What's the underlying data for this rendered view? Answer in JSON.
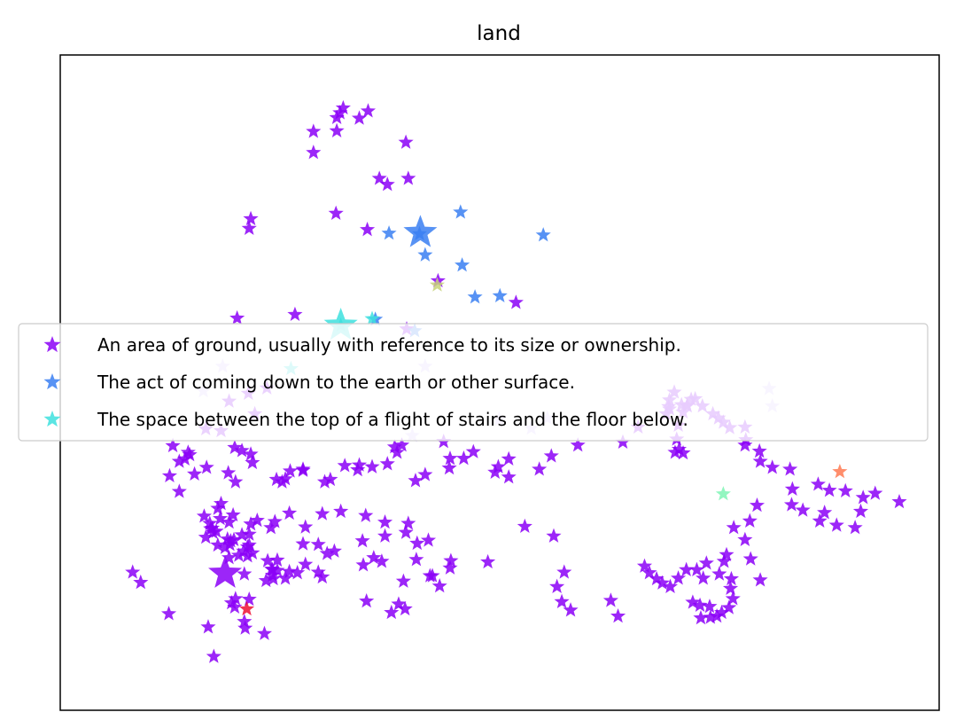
{
  "chart_data": {
    "type": "scatter",
    "title": "land",
    "xlabel": "",
    "ylabel": "",
    "xlim": [
      0,
      100
    ],
    "ylim": [
      0,
      100
    ],
    "grid": false,
    "ticks_visible": false,
    "marker": "star",
    "legend": {
      "placement": "center-left",
      "entries": [
        {
          "label": "An area of ground, usually with reference to its size or ownership.",
          "color": "#8b00f7"
        },
        {
          "label": "The act of coming down to the earth or other surface.",
          "color": "#3a7ff2"
        },
        {
          "label": "The space between the top of a flight of stairs and the floor below.",
          "color": "#3de0de"
        }
      ]
    },
    "series": [
      {
        "color": "#8b00f7",
        "points": [
          [
            30.8,
            95.6
          ],
          [
            30.4,
            94.8
          ],
          [
            33.9,
            95.1
          ],
          [
            30.0,
            94.0
          ],
          [
            32.8,
            93.9
          ],
          [
            27.1,
            91.7
          ],
          [
            30.0,
            91.8
          ],
          [
            27.1,
            88.2
          ],
          [
            38.6,
            89.9
          ],
          [
            35.3,
            83.9
          ],
          [
            36.3,
            82.9
          ],
          [
            38.9,
            83.9
          ],
          [
            19.3,
            77.2
          ],
          [
            19.1,
            75.6
          ],
          [
            29.9,
            78.1
          ],
          [
            33.8,
            75.4
          ],
          [
            42.6,
            66.9
          ],
          [
            52.3,
            63.3
          ],
          [
            17.6,
            60.7
          ],
          [
            24.8,
            61.3
          ],
          [
            38.7,
            58.9
          ],
          [
            19.0,
            48.2
          ],
          [
            21.3,
            49.1
          ],
          [
            19.8,
            44.8
          ],
          [
            16.6,
            46.9
          ],
          [
            13.7,
            42.3
          ],
          [
            16.5,
            35.0
          ],
          [
            18.2,
            38.7
          ],
          [
            17.3,
            39.2
          ],
          [
            19.3,
            38.1
          ],
          [
            19.5,
            36.7
          ],
          [
            17.4,
            33.5
          ],
          [
            15.6,
            42.0
          ],
          [
            9.6,
            39.5
          ],
          [
            11.5,
            38.4
          ],
          [
            11.1,
            37.3
          ],
          [
            11.7,
            38.0
          ],
          [
            13.8,
            35.9
          ],
          [
            9.2,
            34.5
          ],
          [
            10.4,
            36.9
          ],
          [
            10.4,
            31.9
          ],
          [
            12.3,
            34.8
          ],
          [
            17.1,
            28.0
          ],
          [
            15.2,
            29.1
          ],
          [
            14.5,
            25.8
          ],
          [
            16.8,
            23.7
          ],
          [
            18.2,
            24.7
          ],
          [
            19.1,
            23.0
          ],
          [
            18.4,
            22.0
          ],
          [
            17.8,
            21.3
          ],
          [
            19.5,
            21.7
          ],
          [
            18.9,
            21.2
          ],
          [
            16.4,
            24.0
          ],
          [
            14.6,
            25.1
          ],
          [
            16.1,
            22.6
          ],
          [
            16.6,
            20.9
          ],
          [
            16.7,
            23.1
          ],
          [
            18.9,
            22.7
          ],
          [
            19.1,
            24.8
          ],
          [
            15.0,
            25.3
          ],
          [
            13.7,
            24.3
          ],
          [
            15.2,
            23.0
          ],
          [
            17.2,
            23.9
          ],
          [
            14.2,
            26.6
          ],
          [
            14.3,
            25.7
          ],
          [
            16.6,
            26.8
          ],
          [
            15.5,
            27.4
          ],
          [
            20.1,
            27.1
          ],
          [
            19.3,
            26.5
          ],
          [
            13.5,
            27.8
          ],
          [
            15.6,
            29.9
          ],
          [
            4.6,
            18.5
          ],
          [
            5.6,
            16.8
          ],
          [
            9.1,
            11.6
          ],
          [
            14.0,
            9.4
          ],
          [
            18.6,
            9.2
          ],
          [
            14.7,
            4.5
          ],
          [
            21.0,
            8.3
          ],
          [
            18.5,
            10.3
          ],
          [
            17.4,
            14.1
          ],
          [
            19.1,
            14.0
          ],
          [
            17.3,
            12.7
          ],
          [
            22.0,
            18.0
          ],
          [
            21.2,
            17.1
          ],
          [
            22.6,
            18.8
          ],
          [
            22.1,
            17.4
          ],
          [
            16.9,
            13.4
          ],
          [
            18.5,
            18.2
          ],
          [
            21.9,
            19.0
          ],
          [
            23.6,
            17.5
          ],
          [
            21.4,
            20.4
          ],
          [
            22.6,
            20.5
          ],
          [
            22.0,
            18.9
          ],
          [
            24.1,
            18.6
          ],
          [
            27.7,
            23.1
          ],
          [
            25.1,
            18.4
          ],
          [
            28.2,
            17.7
          ],
          [
            27.7,
            18.5
          ],
          [
            26.1,
            19.8
          ],
          [
            28.8,
            21.6
          ],
          [
            29.7,
            22.0
          ],
          [
            21.8,
            25.9
          ],
          [
            25.8,
            23.2
          ],
          [
            33.3,
            19.7
          ],
          [
            34.6,
            20.9
          ],
          [
            33.2,
            23.7
          ],
          [
            35.6,
            20.3
          ],
          [
            37.7,
            13.2
          ],
          [
            33.7,
            13.7
          ],
          [
            38.5,
            12.4
          ],
          [
            36.8,
            11.8
          ],
          [
            41.9,
            17.9
          ],
          [
            38.3,
            17.0
          ],
          [
            39.9,
            20.6
          ],
          [
            40.0,
            23.3
          ],
          [
            36.0,
            24.5
          ],
          [
            38.6,
            25.1
          ],
          [
            41.4,
            23.8
          ],
          [
            44.1,
            19.2
          ],
          [
            41.6,
            17.9
          ],
          [
            42.8,
            16.2
          ],
          [
            44.2,
            20.4
          ],
          [
            48.8,
            20.2
          ],
          [
            38.9,
            26.6
          ],
          [
            36.0,
            26.8
          ],
          [
            33.6,
            27.9
          ],
          [
            30.5,
            28.6
          ],
          [
            28.2,
            28.2
          ],
          [
            26.1,
            26.0
          ],
          [
            24.1,
            28.3
          ],
          [
            22.3,
            26.9
          ],
          [
            23.2,
            33.5
          ],
          [
            22.5,
            33.9
          ],
          [
            25.8,
            35.4
          ],
          [
            32.8,
            36.3
          ],
          [
            37.5,
            38.4
          ],
          [
            37.2,
            39.3
          ],
          [
            38.1,
            39.6
          ],
          [
            43.3,
            40.2
          ],
          [
            44.1,
            37.4
          ],
          [
            45.8,
            37.4
          ],
          [
            49.7,
            35.1
          ],
          [
            51.4,
            34.3
          ],
          [
            55.2,
            35.6
          ],
          [
            53.4,
            26.1
          ],
          [
            57.0,
            24.5
          ],
          [
            58.3,
            18.5
          ],
          [
            57.4,
            16.1
          ],
          [
            58.0,
            13.6
          ],
          [
            59.1,
            12.2
          ],
          [
            64.1,
            13.8
          ],
          [
            65.0,
            11.2
          ],
          [
            68.3,
            19.5
          ],
          [
            68.9,
            18.4
          ],
          [
            69.8,
            17.4
          ],
          [
            70.5,
            16.7
          ],
          [
            71.5,
            16.1
          ],
          [
            72.5,
            17.5
          ],
          [
            73.5,
            18.9
          ],
          [
            74.8,
            18.9
          ],
          [
            75.6,
            17.5
          ],
          [
            76.0,
            20.0
          ],
          [
            77.6,
            18.2
          ],
          [
            78.2,
            20.3
          ],
          [
            78.5,
            21.4
          ],
          [
            79.1,
            17.4
          ],
          [
            79.0,
            15.8
          ],
          [
            79.3,
            14.1
          ],
          [
            78.8,
            12.6
          ],
          [
            77.9,
            11.8
          ],
          [
            76.4,
            12.8
          ],
          [
            75.2,
            13.0
          ],
          [
            74.3,
            13.5
          ],
          [
            75.3,
            10.9
          ],
          [
            76.5,
            11.0
          ],
          [
            77.3,
            11.2
          ],
          [
            82.7,
            17.2
          ],
          [
            81.5,
            20.7
          ],
          [
            80.8,
            23.9
          ],
          [
            79.4,
            25.9
          ],
          [
            81.4,
            27.0
          ],
          [
            82.3,
            29.6
          ],
          [
            86.6,
            29.7
          ],
          [
            88.0,
            28.8
          ],
          [
            90.7,
            28.4
          ],
          [
            90.1,
            27.0
          ],
          [
            92.2,
            26.3
          ],
          [
            94.5,
            25.9
          ],
          [
            95.2,
            28.6
          ],
          [
            95.5,
            30.9
          ],
          [
            86.7,
            32.3
          ],
          [
            89.9,
            33.1
          ],
          [
            91.3,
            32.1
          ],
          [
            93.3,
            32.0
          ],
          [
            97.0,
            31.6
          ],
          [
            100.0,
            30.2
          ],
          [
            86.4,
            35.6
          ],
          [
            84.2,
            35.9
          ],
          [
            82.7,
            36.9
          ],
          [
            82.6,
            38.6
          ],
          [
            80.8,
            39.6
          ],
          [
            80.9,
            40.5
          ],
          [
            80.8,
            42.6
          ],
          [
            78.9,
            42.5
          ],
          [
            78.1,
            43.4
          ],
          [
            77.5,
            44.1
          ],
          [
            76.8,
            44.8
          ],
          [
            75.5,
            46.1
          ],
          [
            74.1,
            47.2
          ],
          [
            73.6,
            46.2
          ],
          [
            72.9,
            46.3
          ],
          [
            73.6,
            46.1
          ],
          [
            73.1,
            45.1
          ],
          [
            72.5,
            42.9
          ],
          [
            72.3,
            40.6
          ],
          [
            72.1,
            38.4
          ],
          [
            72.6,
            38.9
          ],
          [
            73.1,
            38.3
          ],
          [
            71.0,
            44.8
          ],
          [
            71.3,
            46.0
          ],
          [
            71.4,
            45.6
          ],
          [
            71.4,
            47.1
          ],
          [
            74.6,
            47.3
          ],
          [
            72.0,
            48.4
          ],
          [
            67.5,
            42.6
          ],
          [
            65.6,
            40.1
          ],
          [
            60.0,
            39.6
          ],
          [
            56.7,
            37.8
          ],
          [
            51.4,
            37.3
          ],
          [
            50.1,
            36.0
          ],
          [
            47.0,
            38.5
          ],
          [
            44.0,
            35.8
          ],
          [
            41.0,
            34.7
          ],
          [
            39.8,
            33.7
          ],
          [
            36.3,
            36.5
          ],
          [
            34.4,
            36.0
          ],
          [
            32.6,
            35.5
          ],
          [
            31.0,
            36.2
          ],
          [
            29.2,
            33.9
          ],
          [
            28.5,
            33.5
          ],
          [
            25.8,
            35.6
          ],
          [
            24.2,
            35.3
          ],
          [
            23.6,
            34.0
          ]
        ]
      },
      {
        "color": "#3a7ff2",
        "points": [
          [
            40.3,
            74.7
          ],
          [
            36.5,
            74.8
          ],
          [
            45.4,
            78.3
          ],
          [
            55.7,
            74.5
          ],
          [
            41.0,
            71.2
          ],
          [
            45.6,
            69.5
          ],
          [
            50.3,
            64.4
          ],
          [
            47.2,
            64.2
          ],
          [
            34.8,
            60.5
          ],
          [
            39.7,
            58.6
          ]
        ]
      },
      {
        "color": "#3de0de",
        "points": [
          [
            34.4,
            60.6
          ],
          [
            30.5,
            59.5
          ],
          [
            24.3,
            52.3
          ]
        ]
      },
      {
        "color": "#d6c2ff",
        "points": [
          [
            15.8,
            52.7
          ],
          [
            13.4,
            48.6
          ],
          [
            41.0,
            52.7
          ],
          [
            50.2,
            43.9
          ],
          [
            54.2,
            42.4
          ],
          [
            39.4,
            41.2
          ],
          [
            56.2,
            44.1
          ],
          [
            84.2,
            46.1
          ],
          [
            83.8,
            49.0
          ]
        ]
      },
      {
        "color": "#ff7a52",
        "points": [
          [
            92.6,
            35.2
          ]
        ]
      },
      {
        "color": "#ee1133",
        "points": [
          [
            18.8,
            12.4
          ]
        ]
      },
      {
        "color": "#c7d27a",
        "points": [
          [
            42.5,
            66.2
          ]
        ]
      },
      {
        "color": "#7ff5b5",
        "points": [
          [
            78.1,
            31.5
          ]
        ]
      }
    ],
    "highlight_points": [
      {
        "x": 40.4,
        "y": 74.9,
        "color": "#3a7ff2"
      },
      {
        "x": 30.5,
        "y": 59.5,
        "color": "#3de0de"
      },
      {
        "x": 16.1,
        "y": 18.3,
        "color": "#8b00f7"
      }
    ]
  }
}
